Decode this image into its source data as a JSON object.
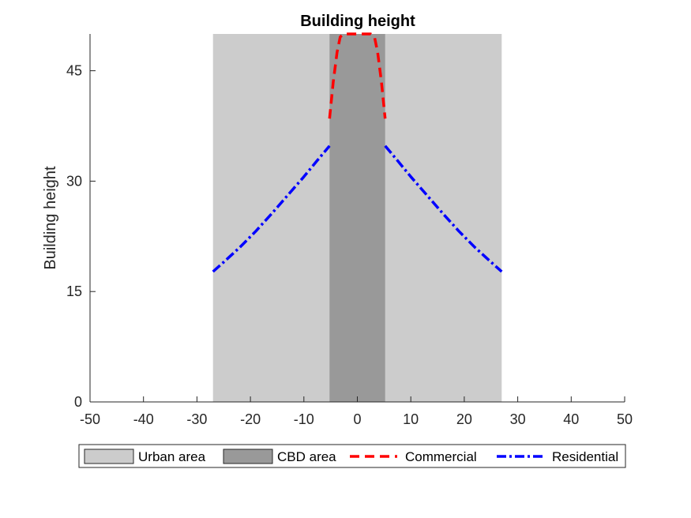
{
  "chart_data": {
    "type": "line",
    "title": "Building height",
    "xlabel": "",
    "ylabel": "Building height",
    "xlim": [
      -50,
      50
    ],
    "ylim": [
      0,
      50
    ],
    "xticks": [
      "-50",
      "-40",
      "-30",
      "-20",
      "-10",
      "0",
      "10",
      "20",
      "30",
      "40",
      "50"
    ],
    "yticks": [
      "0",
      "15",
      "30",
      "45"
    ],
    "grid": false,
    "legend_placement": "bottom-outside",
    "regions": [
      {
        "name": "Urban area",
        "x_range": [
          -27,
          27
        ],
        "color": "#cccccc"
      },
      {
        "name": "CBD area",
        "x_range": [
          -5.2,
          5.2
        ],
        "color": "#999999"
      }
    ],
    "series": [
      {
        "name": "Commercial",
        "color": "#ff0000",
        "style": "dashed",
        "segments": [
          [
            [
              -5.2,
              38.5
            ],
            [
              -4.5,
              43.5
            ],
            [
              -3.8,
              47.5
            ],
            [
              -3.2,
              49.6
            ],
            [
              -2.5,
              50
            ],
            [
              0,
              50
            ],
            [
              2.5,
              50
            ],
            [
              3.2,
              49.6
            ],
            [
              3.8,
              47.5
            ],
            [
              4.5,
              43.5
            ],
            [
              5.2,
              38.5
            ]
          ]
        ]
      },
      {
        "name": "Residential",
        "color": "#0000ff",
        "style": "dashdot",
        "segments": [
          [
            [
              -27,
              17.7
            ],
            [
              -25,
              19.0
            ],
            [
              -22,
              21.0
            ],
            [
              -19,
              23.2
            ],
            [
              -16,
              25.6
            ],
            [
              -13,
              28.1
            ],
            [
              -10,
              30.6
            ],
            [
              -7.5,
              32.8
            ],
            [
              -5.2,
              34.8
            ]
          ],
          [
            [
              5.2,
              34.8
            ],
            [
              7.5,
              32.8
            ],
            [
              10,
              30.6
            ],
            [
              13,
              28.1
            ],
            [
              16,
              25.6
            ],
            [
              19,
              23.2
            ],
            [
              22,
              21.0
            ],
            [
              25,
              19.0
            ],
            [
              27,
              17.7
            ]
          ]
        ]
      }
    ],
    "legend": [
      {
        "label": "Urban area",
        "kind": "patch",
        "color": "#cccccc"
      },
      {
        "label": "CBD area",
        "kind": "patch",
        "color": "#999999"
      },
      {
        "label": "Commercial",
        "kind": "line",
        "color": "#ff0000",
        "style": "dashed"
      },
      {
        "label": "Residential",
        "kind": "line",
        "color": "#0000ff",
        "style": "dashdot"
      }
    ]
  }
}
